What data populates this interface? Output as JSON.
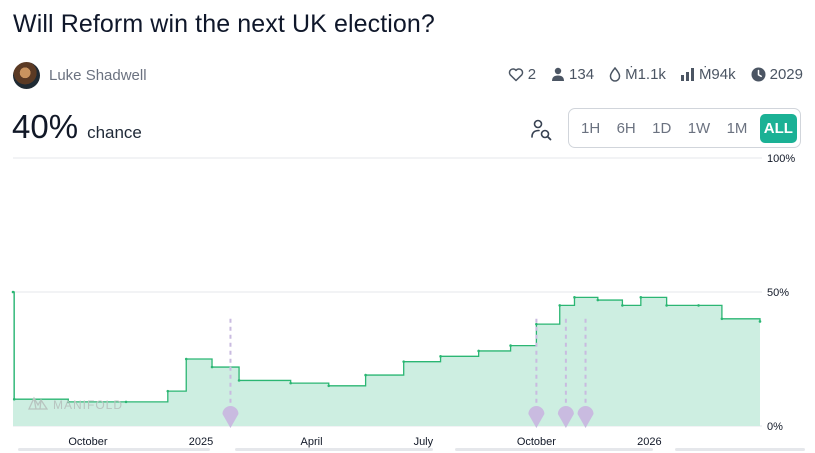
{
  "title": "Will Reform win the next UK election?",
  "creator": {
    "name": "Luke Shadwell"
  },
  "stats": {
    "likes": "2",
    "traders": "134",
    "liquidity": "Ṁ1.1k",
    "volume": "Ṁ94k",
    "close_year": "2029"
  },
  "probability": {
    "value": "40%",
    "label": "chance"
  },
  "time_ranges": [
    "1H",
    "6H",
    "1D",
    "1W",
    "1M",
    "ALL"
  ],
  "active_range": "ALL",
  "watermark": "MANIFOLD",
  "colors": {
    "accent": "#1bb195",
    "line": "#2bb673",
    "fill": "#cdeee1",
    "marker": "#c9bbe0"
  },
  "chart_data": {
    "type": "area",
    "x_tick_labels": [
      "October",
      "2025",
      "April",
      "July",
      "October",
      "2026"
    ],
    "y_tick_labels": [
      "100%",
      "50%",
      "0%"
    ],
    "ylim": [
      0,
      100
    ],
    "grid": true,
    "series": [
      {
        "values": [
          {
            "date": "2024-08-01",
            "p": 50
          },
          {
            "date": "2024-08-02",
            "p": 10
          },
          {
            "date": "2024-09-15",
            "p": 9
          },
          {
            "date": "2024-11-01",
            "p": 9
          },
          {
            "date": "2024-12-05",
            "p": 13
          },
          {
            "date": "2024-12-20",
            "p": 25
          },
          {
            "date": "2025-01-10",
            "p": 22
          },
          {
            "date": "2025-02-01",
            "p": 17
          },
          {
            "date": "2025-03-15",
            "p": 16
          },
          {
            "date": "2025-04-15",
            "p": 15
          },
          {
            "date": "2025-05-15",
            "p": 19
          },
          {
            "date": "2025-06-15",
            "p": 24
          },
          {
            "date": "2025-07-15",
            "p": 26
          },
          {
            "date": "2025-08-15",
            "p": 28
          },
          {
            "date": "2025-09-10",
            "p": 30
          },
          {
            "date": "2025-10-01",
            "p": 38
          },
          {
            "date": "2025-10-20",
            "p": 45
          },
          {
            "date": "2025-11-01",
            "p": 48
          },
          {
            "date": "2025-11-20",
            "p": 47
          },
          {
            "date": "2025-12-10",
            "p": 45
          },
          {
            "date": "2025-12-25",
            "p": 48
          },
          {
            "date": "2026-01-15",
            "p": 45
          },
          {
            "date": "2026-02-10",
            "p": 45
          },
          {
            "date": "2026-03-01",
            "p": 40
          },
          {
            "date": "2026-04-01",
            "p": 39
          }
        ]
      }
    ],
    "event_markers": [
      "2025-01-25",
      "2025-10-01",
      "2025-10-25",
      "2025-11-10"
    ]
  }
}
